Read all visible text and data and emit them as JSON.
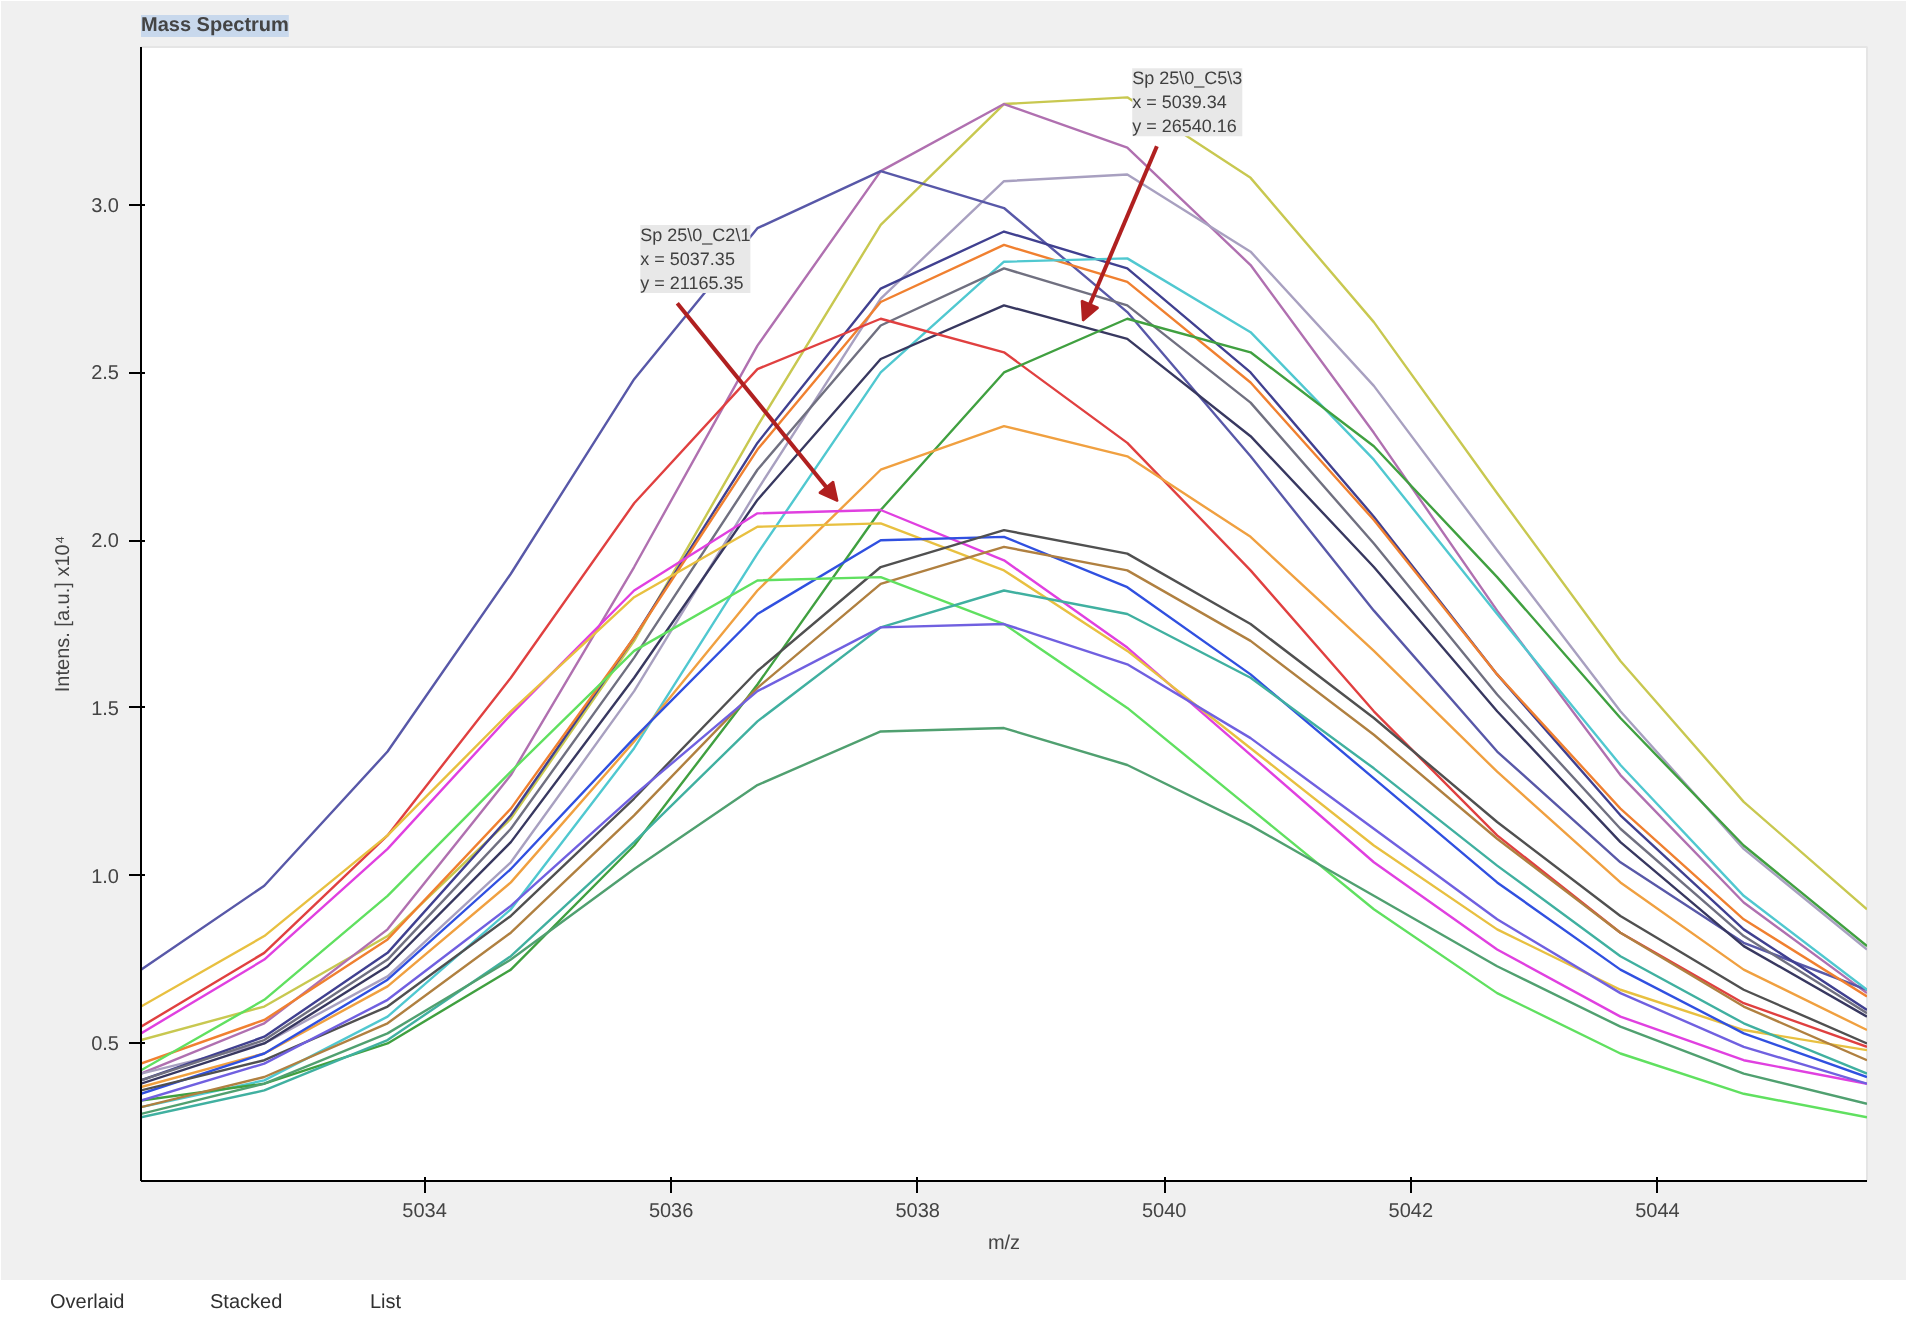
{
  "chart_data": {
    "type": "line",
    "title": "Mass Spectrum",
    "xlabel": "m/z",
    "ylabel": "Intens. [a.u.] x10⁴",
    "x": [
      5031.7,
      5032.7,
      5033.7,
      5034.7,
      5035.7,
      5036.7,
      5037.7,
      5038.7,
      5039.7,
      5040.7,
      5041.7,
      5042.7,
      5043.7,
      5044.7,
      5045.7
    ],
    "xlim": [
      5031.7,
      5045.7
    ],
    "xticks": [
      5034,
      5036,
      5038,
      5040,
      5042,
      5044
    ],
    "ylim": [
      0.09,
      3.47
    ],
    "yticks": [
      0.5,
      {
        "value": 1.0,
        "label": "1.0"
      },
      1.5,
      {
        "value": 2.0,
        "label": "2.0"
      },
      2.5,
      {
        "value": 3.0,
        "label": "3.0"
      }
    ],
    "grid": false,
    "marker": "none",
    "line_style": "solid",
    "series": [
      {
        "color": "#c8c850",
        "values": [
          0.51,
          0.61,
          0.82,
          1.17,
          1.7,
          2.34,
          2.94,
          3.3,
          3.32,
          3.08,
          2.65,
          2.14,
          1.64,
          1.22,
          0.9
        ]
      },
      {
        "color": "#b070b0",
        "values": [
          0.41,
          0.56,
          0.84,
          1.3,
          1.92,
          2.58,
          3.1,
          3.3,
          3.17,
          2.82,
          2.32,
          1.79,
          1.3,
          0.92,
          0.65
        ]
      },
      {
        "color": "#a8a0c0",
        "values": [
          0.41,
          0.5,
          0.7,
          1.04,
          1.55,
          2.15,
          2.72,
          3.07,
          3.09,
          2.86,
          2.46,
          1.97,
          1.49,
          1.08,
          0.78
        ]
      },
      {
        "color": "#5858a8",
        "values": [
          0.72,
          0.97,
          1.37,
          1.9,
          2.48,
          2.93,
          3.1,
          2.99,
          2.68,
          2.25,
          1.79,
          1.37,
          1.04,
          0.8,
          0.66
        ]
      },
      {
        "color": "#404090",
        "values": [
          0.39,
          0.52,
          0.77,
          1.18,
          1.71,
          2.29,
          2.75,
          2.92,
          2.81,
          2.5,
          2.07,
          1.6,
          1.18,
          0.84,
          0.6
        ]
      },
      {
        "color": "#f08030",
        "values": [
          0.44,
          0.57,
          0.81,
          1.2,
          1.71,
          2.27,
          2.71,
          2.88,
          2.77,
          2.47,
          2.06,
          1.6,
          1.2,
          0.87,
          0.64
        ]
      },
      {
        "color": "#50c8d0",
        "values": [
          0.31,
          0.39,
          0.58,
          0.9,
          1.38,
          1.96,
          2.5,
          2.83,
          2.84,
          2.62,
          2.24,
          1.78,
          1.33,
          0.94,
          0.66
        ]
      },
      {
        "color": "#707080",
        "values": [
          0.39,
          0.51,
          0.75,
          1.14,
          1.65,
          2.21,
          2.64,
          2.81,
          2.7,
          2.41,
          1.99,
          1.54,
          1.14,
          0.82,
          0.59
        ]
      },
      {
        "color": "#383860",
        "values": [
          0.38,
          0.5,
          0.73,
          1.1,
          1.59,
          2.12,
          2.54,
          2.7,
          2.6,
          2.31,
          1.92,
          1.49,
          1.1,
          0.79,
          0.58
        ]
      },
      {
        "color": "#e04040",
        "values": [
          0.55,
          0.77,
          1.12,
          1.59,
          2.11,
          2.51,
          2.66,
          2.56,
          2.29,
          1.91,
          1.49,
          1.12,
          0.83,
          0.62,
          0.49
        ]
      },
      {
        "color": "#40a040",
        "values": [
          0.33,
          0.38,
          0.5,
          0.72,
          1.09,
          1.57,
          2.09,
          2.5,
          2.66,
          2.56,
          2.28,
          1.89,
          1.47,
          1.09,
          0.79
        ]
      },
      {
        "color": "#f0a040",
        "values": [
          0.37,
          0.47,
          0.67,
          0.98,
          1.4,
          1.85,
          2.21,
          2.34,
          2.25,
          2.01,
          1.67,
          1.31,
          0.98,
          0.72,
          0.54
        ]
      },
      {
        "color": "#e040e0",
        "values": [
          0.53,
          0.75,
          1.08,
          1.48,
          1.85,
          2.08,
          2.09,
          1.94,
          1.68,
          1.36,
          1.04,
          0.78,
          0.58,
          0.45,
          0.38
        ]
      },
      {
        "color": "#e8c040",
        "values": [
          0.61,
          0.82,
          1.12,
          1.49,
          1.83,
          2.04,
          2.05,
          1.91,
          1.67,
          1.38,
          1.09,
          0.84,
          0.66,
          0.54,
          0.48
        ]
      },
      {
        "color": "#3050e0",
        "values": [
          0.35,
          0.47,
          0.69,
          1.02,
          1.41,
          1.78,
          2.0,
          2.01,
          1.86,
          1.6,
          1.29,
          0.98,
          0.72,
          0.53,
          0.4
        ]
      },
      {
        "color": "#505050",
        "values": [
          0.36,
          0.45,
          0.61,
          0.88,
          1.23,
          1.61,
          1.92,
          2.03,
          1.96,
          1.75,
          1.47,
          1.16,
          0.88,
          0.66,
          0.5
        ]
      },
      {
        "color": "#b08040",
        "values": [
          0.31,
          0.4,
          0.56,
          0.83,
          1.18,
          1.56,
          1.87,
          1.98,
          1.91,
          1.7,
          1.42,
          1.11,
          0.83,
          0.61,
          0.45
        ]
      },
      {
        "color": "#60e060",
        "values": [
          0.42,
          0.63,
          0.94,
          1.31,
          1.67,
          1.88,
          1.89,
          1.75,
          1.5,
          1.2,
          0.9,
          0.65,
          0.47,
          0.35,
          0.28
        ]
      },
      {
        "color": "#40b0a0",
        "values": [
          0.28,
          0.36,
          0.51,
          0.76,
          1.1,
          1.46,
          1.74,
          1.85,
          1.78,
          1.59,
          1.32,
          1.03,
          0.76,
          0.56,
          0.41
        ]
      },
      {
        "color": "#7060e0",
        "values": [
          0.33,
          0.44,
          0.63,
          0.91,
          1.24,
          1.55,
          1.74,
          1.75,
          1.63,
          1.41,
          1.14,
          0.87,
          0.65,
          0.49,
          0.38
        ]
      },
      {
        "color": "#50a070",
        "values": [
          0.29,
          0.38,
          0.53,
          0.75,
          1.02,
          1.27,
          1.43,
          1.44,
          1.33,
          1.15,
          0.94,
          0.73,
          0.55,
          0.41,
          0.32
        ]
      }
    ],
    "annotations": [
      {
        "text": "Sp 25\\0_C2\\1\nx = 5037.35\ny = 21165.35",
        "x": 5037.35,
        "y": 2.1165
      },
      {
        "text": "Sp 25\\0_C5\\3\nx = 5039.34\ny = 26540.16",
        "x": 5039.34,
        "y": 2.654
      },
      "Overlaid",
      "Stacked",
      "List"
    ]
  }
}
